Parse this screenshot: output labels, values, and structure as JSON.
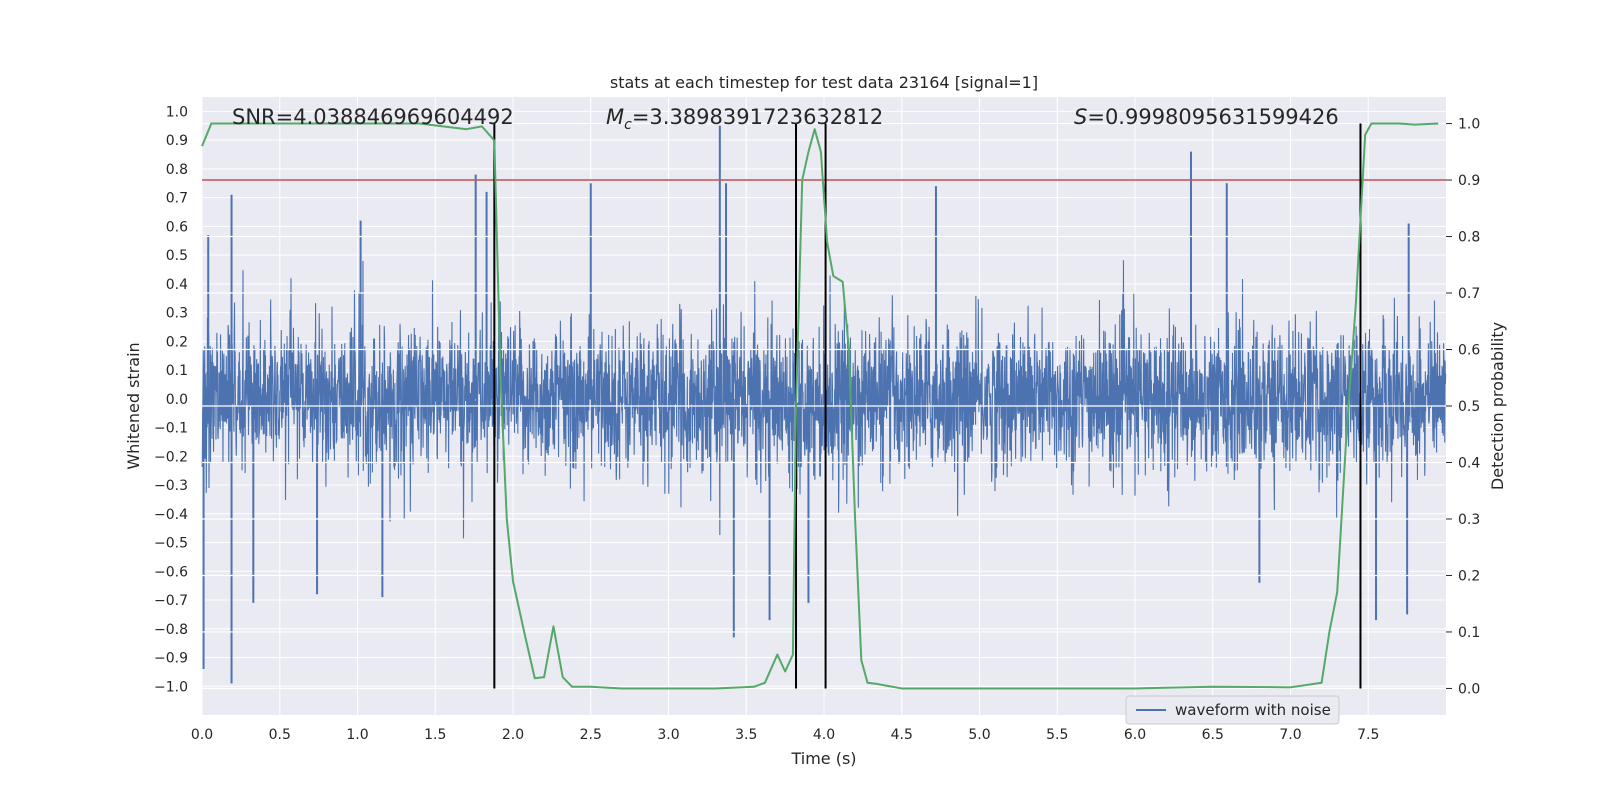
{
  "chart_data": {
    "type": "line",
    "title": "stats at each timestep for test data 23164 [signal=1]",
    "xlabel": "Time (s)",
    "ylabel_left": "Whitened strain",
    "ylabel_right": "Detection probability",
    "xlim": [
      0,
      8
    ],
    "ylim_left": [
      -1.1,
      1.05
    ],
    "ylim_right": [
      -0.047,
      1.047
    ],
    "x_ticks": [
      0.0,
      0.5,
      1.0,
      1.5,
      2.0,
      2.5,
      3.0,
      3.5,
      4.0,
      4.5,
      5.0,
      5.5,
      6.0,
      6.5,
      7.0,
      7.5
    ],
    "x_tick_labels": [
      "0.0",
      "0.5",
      "1.0",
      "1.5",
      "2.0",
      "2.5",
      "3.0",
      "3.5",
      "4.0",
      "4.5",
      "5.0",
      "5.5",
      "6.0",
      "6.5",
      "7.0",
      "7.5"
    ],
    "y_left_ticks": [
      1.0,
      0.9,
      0.8,
      0.7,
      0.6,
      0.5,
      0.4,
      0.3,
      0.2,
      0.1,
      0.0,
      -0.1,
      -0.2,
      -0.3,
      -0.4,
      -0.5,
      -0.6,
      -0.7,
      -0.8,
      -0.9,
      -1.0
    ],
    "y_left_tick_labels": [
      "1.0",
      "0.9",
      "0.8",
      "0.7",
      "0.6",
      "0.5",
      "0.4",
      "0.3",
      "0.2",
      "0.1",
      "0.0",
      "−0.1",
      "−0.2",
      "−0.3",
      "−0.4",
      "−0.5",
      "−0.6",
      "−0.7",
      "−0.8",
      "−0.9",
      "−1.0"
    ],
    "y_right_ticks": [
      1.0,
      0.9,
      0.8,
      0.7,
      0.6,
      0.5,
      0.4,
      0.3,
      0.2,
      0.1,
      0.0
    ],
    "y_right_tick_labels": [
      "1.0",
      "0.9",
      "0.8",
      "0.7",
      "0.6",
      "0.5",
      "0.4",
      "0.3",
      "0.2",
      "0.1",
      "0.0"
    ],
    "annotations": {
      "snr": "SNR=4.038846969604492",
      "mc_symbol": "M",
      "mc_sub": "c",
      "mc_value": "=3.3898391723632812",
      "s_symbol": "S",
      "s_value": "=0.9998095631599426"
    },
    "legend": {
      "label": "waveform with noise",
      "position": "lower-right"
    },
    "threshold": {
      "value": 0.9,
      "axis": "right",
      "color": "#c44e52"
    },
    "vertical_markers": [
      1.88,
      3.82,
      4.01,
      7.45
    ],
    "colors": {
      "waveform": "#4c72b0",
      "probability": "#55a868",
      "marker": "#000000",
      "background": "#eaeaf2",
      "grid": "#ffffff"
    },
    "series": [
      {
        "name": "waveform with noise",
        "axis": "left",
        "style": "noise",
        "sample_rate": 512,
        "base_amplitude": 0.3,
        "spikes": [
          {
            "x": 0.01,
            "y": -0.94
          },
          {
            "x": 0.04,
            "y": 0.57
          },
          {
            "x": 0.19,
            "y": 0.71
          },
          {
            "x": 0.19,
            "y": -0.99
          },
          {
            "x": 0.33,
            "y": -0.71
          },
          {
            "x": 0.74,
            "y": -0.68
          },
          {
            "x": 1.02,
            "y": 0.62
          },
          {
            "x": 1.16,
            "y": -0.69
          },
          {
            "x": 1.76,
            "y": 0.78
          },
          {
            "x": 1.83,
            "y": 0.72
          },
          {
            "x": 2.5,
            "y": 0.75
          },
          {
            "x": 3.33,
            "y": 0.95
          },
          {
            "x": 3.37,
            "y": 0.75
          },
          {
            "x": 3.42,
            "y": -0.83
          },
          {
            "x": 3.65,
            "y": -0.77
          },
          {
            "x": 3.9,
            "y": -0.71
          },
          {
            "x": 4.72,
            "y": 0.74
          },
          {
            "x": 6.36,
            "y": 0.86
          },
          {
            "x": 6.59,
            "y": 0.75
          },
          {
            "x": 6.8,
            "y": -0.64
          },
          {
            "x": 7.55,
            "y": -0.77
          },
          {
            "x": 7.75,
            "y": -0.75
          },
          {
            "x": 7.76,
            "y": 0.61
          }
        ]
      },
      {
        "name": "detection probability",
        "axis": "right",
        "style": "line",
        "x": [
          0.0,
          0.06,
          0.2,
          0.4,
          0.6,
          0.8,
          1.0,
          1.2,
          1.4,
          1.55,
          1.7,
          1.8,
          1.88,
          1.92,
          1.96,
          2.0,
          2.08,
          2.14,
          2.2,
          2.26,
          2.32,
          2.38,
          2.5,
          2.7,
          3.0,
          3.3,
          3.55,
          3.62,
          3.7,
          3.75,
          3.8,
          3.82,
          3.86,
          3.9,
          3.94,
          3.98,
          4.02,
          4.06,
          4.12,
          4.16,
          4.2,
          4.24,
          4.28,
          4.34,
          4.5,
          5.0,
          5.5,
          6.0,
          6.5,
          7.0,
          7.2,
          7.25,
          7.3,
          7.36,
          7.42,
          7.48,
          7.52,
          7.56,
          7.7,
          7.8,
          7.95
        ],
        "y": [
          0.96,
          1.0,
          1.0,
          1.0,
          1.0,
          1.0,
          1.0,
          1.0,
          1.0,
          0.995,
          0.99,
          0.995,
          0.97,
          0.55,
          0.3,
          0.19,
          0.09,
          0.018,
          0.02,
          0.11,
          0.02,
          0.003,
          0.003,
          0.0,
          0.0,
          0.0,
          0.003,
          0.01,
          0.06,
          0.03,
          0.06,
          0.5,
          0.9,
          0.95,
          0.99,
          0.95,
          0.79,
          0.73,
          0.72,
          0.6,
          0.3,
          0.05,
          0.01,
          0.008,
          0.0,
          0.0,
          0.0,
          0.0,
          0.003,
          0.002,
          0.01,
          0.1,
          0.17,
          0.45,
          0.68,
          0.98,
          1.0,
          1.0,
          1.0,
          0.998,
          1.0
        ]
      }
    ]
  }
}
